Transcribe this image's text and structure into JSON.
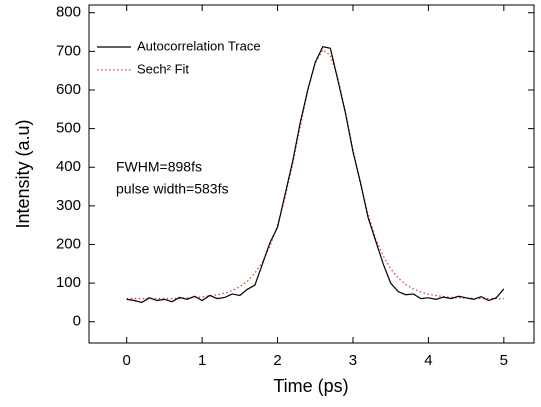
{
  "chart_data": {
    "type": "line",
    "x_label": "Time (ps)",
    "y_label": "Intensity (a.u)",
    "x": [
      0,
      0.1,
      0.2,
      0.3,
      0.4,
      0.5,
      0.6,
      0.7,
      0.8,
      0.9,
      1.0,
      1.1,
      1.2,
      1.3,
      1.4,
      1.5,
      1.6,
      1.7,
      1.8,
      1.9,
      2.0,
      2.1,
      2.2,
      2.3,
      2.4,
      2.5,
      2.6,
      2.7,
      2.8,
      2.9,
      3.0,
      3.1,
      3.2,
      3.3,
      3.4,
      3.5,
      3.6,
      3.7,
      3.8,
      3.9,
      4.0,
      4.1,
      4.2,
      4.3,
      4.4,
      4.5,
      4.6,
      4.7,
      4.8,
      4.9,
      5.0
    ],
    "series": [
      {
        "name": "Autocorrelation Trace",
        "color": "#000000",
        "style": "solid",
        "values": [
          58,
          55,
          50,
          62,
          55,
          58,
          52,
          63,
          58,
          66,
          55,
          68,
          60,
          63,
          72,
          68,
          84,
          95,
          150,
          205,
          245,
          330,
          415,
          515,
          600,
          672,
          712,
          708,
          625,
          540,
          440,
          360,
          270,
          210,
          150,
          100,
          78,
          70,
          72,
          60,
          62,
          58,
          64,
          60,
          66,
          62,
          58,
          65,
          55,
          62,
          85
        ]
      },
      {
        "name": "Sech² Fit",
        "color": "#e0403c",
        "style": "dotted",
        "values": [
          60,
          60,
          60,
          60,
          60,
          60,
          60,
          61,
          62,
          63,
          64,
          67,
          70,
          74,
          81,
          91,
          105,
          126,
          155,
          196,
          250,
          322,
          409,
          504,
          598,
          670,
          704,
          690,
          631,
          544,
          446,
          355,
          278,
          215,
          171,
          137,
          113,
          96,
          85,
          77,
          71,
          68,
          65,
          63,
          62,
          61,
          61,
          60,
          60,
          60,
          60
        ]
      }
    ],
    "annotations": [
      "FWHM=898fs",
      "pulse width=583fs"
    ],
    "xlim": [
      -0.5,
      5.4
    ],
    "ylim": [
      -55,
      820
    ],
    "xticks": [
      0,
      1,
      2,
      3,
      4,
      5
    ],
    "yticks": [
      0,
      100,
      200,
      300,
      400,
      500,
      600,
      700,
      800
    ],
    "legend": "upper left",
    "grid": false
  }
}
